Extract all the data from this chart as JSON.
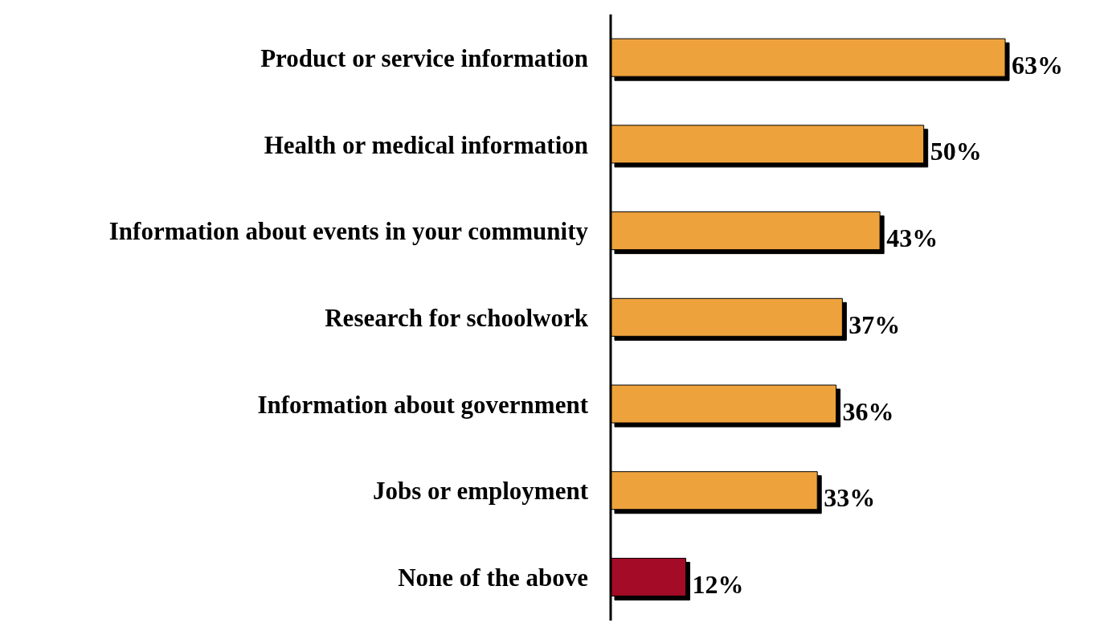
{
  "chart_data": {
    "type": "bar",
    "orientation": "horizontal",
    "categories": [
      "Product or service information",
      "Health or medical information",
      "Information about events in your community",
      "Research for schoolwork",
      "Information about government",
      "Jobs or employment",
      "None of the above"
    ],
    "values": [
      63,
      50,
      43,
      37,
      36,
      33,
      12
    ],
    "colors": [
      "#eea23c",
      "#eea23c",
      "#eea23c",
      "#eea23c",
      "#eea23c",
      "#eea23c",
      "#a30b26"
    ],
    "value_labels": [
      "63%",
      "50%",
      "43%",
      "37%",
      "36%",
      "33%",
      "12%"
    ],
    "grid": false,
    "legend": false
  }
}
